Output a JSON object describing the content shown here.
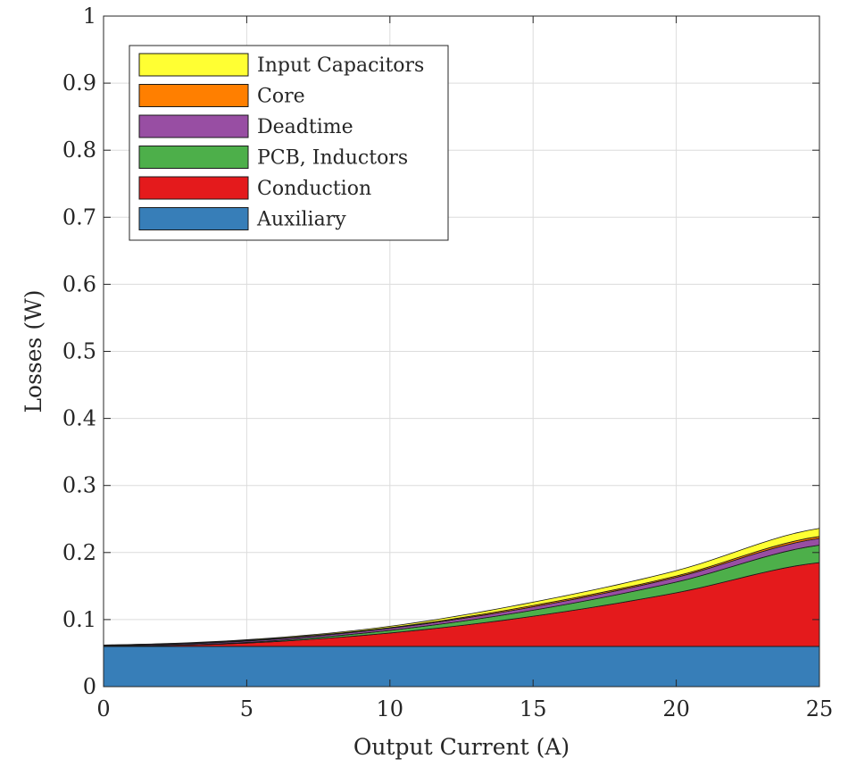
{
  "chart_data": {
    "type": "area",
    "stacked": true,
    "xlabel": "Output Current (A)",
    "ylabel": "Losses (W)",
    "xlim": [
      0,
      25
    ],
    "ylim": [
      0,
      1
    ],
    "xticks": [
      0,
      5,
      10,
      15,
      20,
      25
    ],
    "yticks": [
      0,
      0.1,
      0.2,
      0.3,
      0.4,
      0.5,
      0.6,
      0.7,
      0.8,
      0.9,
      1
    ],
    "xtick_labels": [
      "0",
      "5",
      "10",
      "15",
      "20",
      "25"
    ],
    "ytick_labels": [
      "0",
      "0.1",
      "0.2",
      "0.3",
      "0.4",
      "0.5",
      "0.6",
      "0.7",
      "0.8",
      "0.9",
      "1"
    ],
    "grid": true,
    "legend_position": "top-left",
    "x": [
      0,
      5,
      10,
      15,
      20,
      25
    ],
    "series": [
      {
        "name": "Auxiliary",
        "color": "#377eb8",
        "values": [
          0.06,
          0.06,
          0.06,
          0.06,
          0.06,
          0.06
        ]
      },
      {
        "name": "Conduction",
        "color": "#e41a1c",
        "values": [
          0.0,
          0.005,
          0.02,
          0.045,
          0.08,
          0.125
        ]
      },
      {
        "name": "PCB, Inductors",
        "color": "#4daf4a",
        "values": [
          0.0,
          0.001,
          0.004,
          0.009,
          0.016,
          0.026
        ]
      },
      {
        "name": "Deadtime",
        "color": "#984ea3",
        "values": [
          0.001,
          0.002,
          0.003,
          0.005,
          0.007,
          0.01
        ]
      },
      {
        "name": "Core",
        "color": "#ff7f00",
        "values": [
          0.001,
          0.001,
          0.001,
          0.002,
          0.002,
          0.003
        ]
      },
      {
        "name": "Input Capacitors",
        "color": "#ffff33",
        "values": [
          0.0,
          0.001,
          0.002,
          0.005,
          0.008,
          0.012
        ]
      }
    ]
  }
}
